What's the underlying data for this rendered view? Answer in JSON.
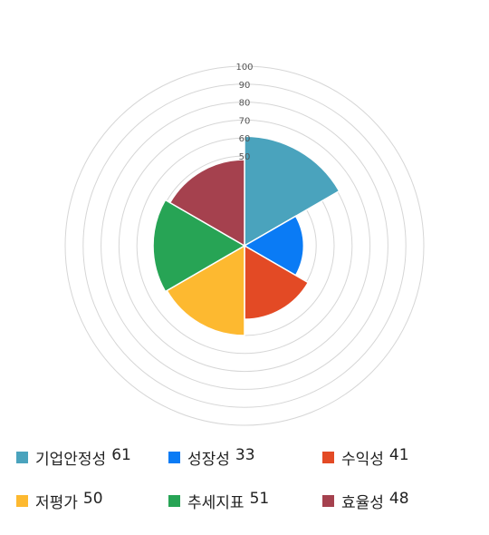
{
  "chart_data": {
    "type": "polar-area",
    "radial_range": [
      0,
      100
    ],
    "radial_ticks": [
      50,
      60,
      70,
      80,
      90,
      100
    ],
    "grid": true,
    "legend_position": "bottom",
    "categories": [
      "기업안정성",
      "성장성",
      "수익성",
      "저평가",
      "추세지표",
      "효율성"
    ],
    "values": [
      61,
      33,
      41,
      50,
      51,
      48
    ],
    "colors": [
      "#4aa3bd",
      "#0a7bf5",
      "#e34a25",
      "#fdb930",
      "#27a455",
      "#a5414e"
    ]
  }
}
